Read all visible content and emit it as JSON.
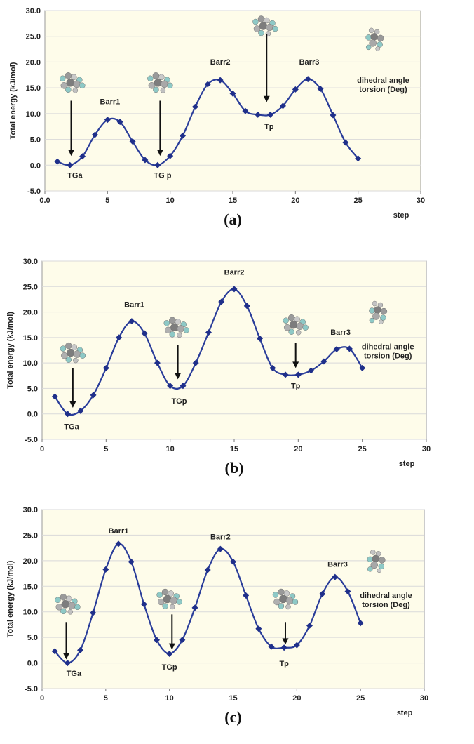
{
  "colors": {
    "line": "#2a3d9a",
    "marker": "#1f2f8a",
    "plot_background": "#fefcea",
    "grid": "#d9d9d9"
  },
  "icons": [
    "molecule-icon"
  ],
  "chart_data": [
    {
      "type": "line",
      "panel_label": "(a)",
      "ylabel": "Total energy (kJ/mol)",
      "xlabel": "step",
      "xlim": [
        0,
        30
      ],
      "ylim": [
        -5,
        30
      ],
      "xticks": [
        0,
        5,
        10,
        15,
        20,
        25,
        30
      ],
      "xtick_labels": [
        "0.0",
        "5",
        "10",
        "15",
        "20",
        "25",
        "30"
      ],
      "yticks": [
        -5,
        0,
        5,
        10,
        15,
        20,
        25,
        30
      ],
      "ytick_labels": [
        "-5.0",
        "0.0",
        "5.0",
        "10.0",
        "15.0",
        "20.0",
        "25.0",
        "30.0"
      ],
      "grid": true,
      "x": [
        1,
        2,
        3,
        4,
        5,
        6,
        7,
        8,
        9,
        10,
        11,
        12,
        13,
        14,
        15,
        16,
        17,
        18,
        19,
        20,
        21,
        22,
        23,
        24,
        25
      ],
      "values": [
        0.7,
        0.0,
        1.7,
        5.9,
        8.8,
        8.4,
        4.6,
        1.0,
        0.0,
        1.8,
        5.7,
        11.3,
        15.7,
        16.5,
        13.9,
        10.5,
        9.8,
        9.8,
        11.5,
        14.7,
        16.7,
        14.8,
        9.7,
        4.4,
        1.3
      ],
      "annotations": [
        {
          "text": "TGa",
          "x": 2.4,
          "y": -2.5
        },
        {
          "text": "Barr1",
          "x": 5.2,
          "y": 11.8
        },
        {
          "text": "TG p",
          "x": 9.4,
          "y": -2.5
        },
        {
          "text": "Barr2",
          "x": 14.0,
          "y": 19.5
        },
        {
          "text": "Tp",
          "x": 17.9,
          "y": 7.0
        },
        {
          "text": "Barr3",
          "x": 21.1,
          "y": 19.5
        }
      ],
      "arrows": [
        {
          "x": 2.1,
          "y_from": 12.5,
          "y_to": 1.8
        },
        {
          "x": 9.2,
          "y_from": 12.5,
          "y_to": 1.8
        },
        {
          "x": 17.7,
          "y_from": 25.5,
          "y_to": 12.2
        }
      ],
      "molecules": [
        {
          "x": 2.2,
          "y": 16.0
        },
        {
          "x": 9.2,
          "y": 16.0
        },
        {
          "x": 17.6,
          "y": 27.0
        },
        {
          "x": 26.4,
          "y": 24.5
        }
      ],
      "side_note": [
        "dihedral angle",
        "torsion (Deg)"
      ]
    },
    {
      "type": "line",
      "panel_label": "(b)",
      "ylabel": "Total energy (kJ/mol)",
      "xlabel": "step",
      "xlim": [
        0,
        30
      ],
      "ylim": [
        -5,
        30
      ],
      "xticks": [
        0,
        5,
        10,
        15,
        20,
        25,
        30
      ],
      "xtick_labels": [
        "0",
        "5",
        "10",
        "15",
        "20",
        "25",
        "30"
      ],
      "yticks": [
        -5,
        0,
        5,
        10,
        15,
        20,
        25,
        30
      ],
      "ytick_labels": [
        "-5.0",
        "0.0",
        "5.0",
        "10.0",
        "15.0",
        "20.0",
        "25.0",
        "30.0"
      ],
      "grid": true,
      "x": [
        1,
        2,
        3,
        4,
        5,
        6,
        7,
        8,
        9,
        10,
        11,
        12,
        13,
        14,
        15,
        16,
        17,
        18,
        19,
        20,
        21,
        22,
        23,
        24,
        25
      ],
      "values": [
        3.4,
        0.0,
        0.6,
        3.7,
        9.0,
        15.0,
        18.2,
        15.8,
        10.0,
        5.5,
        5.5,
        10.0,
        16.0,
        22.0,
        24.5,
        21.2,
        14.8,
        9.0,
        7.7,
        7.7,
        8.5,
        10.3,
        12.7,
        12.8,
        9.0
      ],
      "annotations": [
        {
          "text": "TGa",
          "x": 2.3,
          "y": -3.0
        },
        {
          "text": "Barr1",
          "x": 7.2,
          "y": 21.0
        },
        {
          "text": "TGp",
          "x": 10.7,
          "y": 2.0
        },
        {
          "text": "Barr2",
          "x": 15.0,
          "y": 27.3
        },
        {
          "text": "Tp",
          "x": 19.8,
          "y": 5.0
        },
        {
          "text": "Barr3",
          "x": 23.3,
          "y": 15.5
        }
      ],
      "arrows": [
        {
          "x": 2.4,
          "y_from": 9.0,
          "y_to": 1.2
        },
        {
          "x": 10.6,
          "y_from": 13.5,
          "y_to": 6.8
        },
        {
          "x": 19.8,
          "y_from": 14.0,
          "y_to": 9.0
        }
      ],
      "molecules": [
        {
          "x": 2.4,
          "y": 12.0
        },
        {
          "x": 10.5,
          "y": 17.0
        },
        {
          "x": 19.8,
          "y": 17.5
        },
        {
          "x": 26.3,
          "y": 20.0
        }
      ],
      "side_note": [
        "dihedral angle",
        "torsion (Deg)"
      ]
    },
    {
      "type": "line",
      "panel_label": "(c)",
      "ylabel": "Total energy (kJ/mol)",
      "xlabel": "step",
      "xlim": [
        0,
        30
      ],
      "ylim": [
        -5,
        30
      ],
      "xticks": [
        0,
        5,
        10,
        15,
        20,
        25,
        30
      ],
      "xtick_labels": [
        "0",
        "5",
        "10",
        "15",
        "20",
        "25",
        "30"
      ],
      "yticks": [
        -5,
        0,
        5,
        10,
        15,
        20,
        25,
        30
      ],
      "ytick_labels": [
        "-5.0",
        "0.0",
        "5.0",
        "10.0",
        "15.0",
        "20.0",
        "25.0",
        "30.0"
      ],
      "grid": true,
      "x": [
        1,
        2,
        3,
        4,
        5,
        6,
        7,
        8,
        9,
        10,
        11,
        12,
        13,
        14,
        15,
        16,
        17,
        18,
        19,
        20,
        21,
        22,
        23,
        24,
        25
      ],
      "values": [
        2.3,
        0.0,
        2.5,
        9.8,
        18.3,
        23.3,
        19.8,
        11.5,
        4.5,
        1.8,
        4.5,
        10.8,
        18.2,
        22.3,
        19.8,
        13.2,
        6.7,
        3.2,
        3.0,
        3.5,
        7.3,
        13.5,
        16.8,
        14.0,
        7.8
      ],
      "annotations": [
        {
          "text": "TGa",
          "x": 2.5,
          "y": -2.5
        },
        {
          "text": "Barr1",
          "x": 6.0,
          "y": 25.3
        },
        {
          "text": "TGp",
          "x": 10.0,
          "y": -1.3
        },
        {
          "text": "Barr2",
          "x": 14.0,
          "y": 24.2
        },
        {
          "text": "Tp",
          "x": 19.0,
          "y": -0.6
        },
        {
          "text": "Barr3",
          "x": 23.2,
          "y": 18.8
        }
      ],
      "arrows": [
        {
          "x": 1.9,
          "y_from": 8.0,
          "y_to": 0.7
        },
        {
          "x": 10.2,
          "y_from": 9.5,
          "y_to": 2.6
        },
        {
          "x": 19.1,
          "y_from": 8.0,
          "y_to": 3.6
        }
      ],
      "molecules": [
        {
          "x": 2.0,
          "y": 11.5
        },
        {
          "x": 10.0,
          "y": 12.5
        },
        {
          "x": 19.1,
          "y": 12.5
        },
        {
          "x": 26.3,
          "y": 20.0
        }
      ],
      "side_note": [
        "dihedral angle",
        "torsion (Deg)"
      ]
    }
  ]
}
